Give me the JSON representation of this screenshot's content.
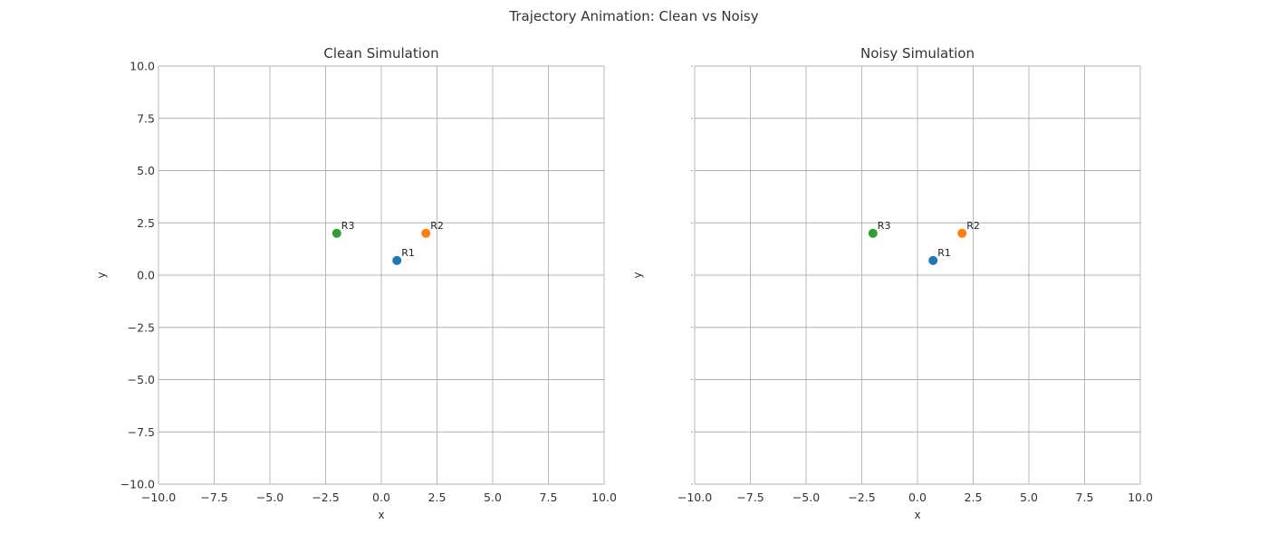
{
  "figure": {
    "suptitle": "Trajectory Animation: Clean vs Noisy"
  },
  "chart_data": [
    {
      "type": "scatter",
      "title": "Clean Simulation",
      "xlabel": "x",
      "ylabel": "y",
      "xlim": [
        -10,
        10
      ],
      "ylim": [
        -10,
        10
      ],
      "xticks": [
        "−10.0",
        "−7.5",
        "−5.0",
        "−2.5",
        "0.0",
        "2.5",
        "5.0",
        "7.5",
        "10.0"
      ],
      "yticks": [
        "10.0",
        "7.5",
        "5.0",
        "2.5",
        "0.0",
        "−2.5",
        "−5.0",
        "−7.5",
        "−10.0"
      ],
      "show_ytick_labels": true,
      "grid": true,
      "points": [
        {
          "label": "R1",
          "x": 0.7,
          "y": 0.7,
          "color": "#1f77b4"
        },
        {
          "label": "R2",
          "x": 2.0,
          "y": 2.0,
          "color": "#ff7f0e"
        },
        {
          "label": "R3",
          "x": -2.0,
          "y": 2.0,
          "color": "#2ca02c"
        }
      ]
    },
    {
      "type": "scatter",
      "title": "Noisy Simulation",
      "xlabel": "x",
      "ylabel": "y",
      "xlim": [
        -10,
        10
      ],
      "ylim": [
        -10,
        10
      ],
      "xticks": [
        "−10.0",
        "−7.5",
        "−5.0",
        "−2.5",
        "0.0",
        "2.5",
        "5.0",
        "7.5",
        "10.0"
      ],
      "yticks": [],
      "show_ytick_labels": false,
      "grid": true,
      "points": [
        {
          "label": "R1",
          "x": 0.7,
          "y": 0.7,
          "color": "#1f77b4"
        },
        {
          "label": "R2",
          "x": 2.0,
          "y": 2.0,
          "color": "#ff7f0e"
        },
        {
          "label": "R3",
          "x": -2.0,
          "y": 2.0,
          "color": "#2ca02c"
        }
      ]
    }
  ]
}
